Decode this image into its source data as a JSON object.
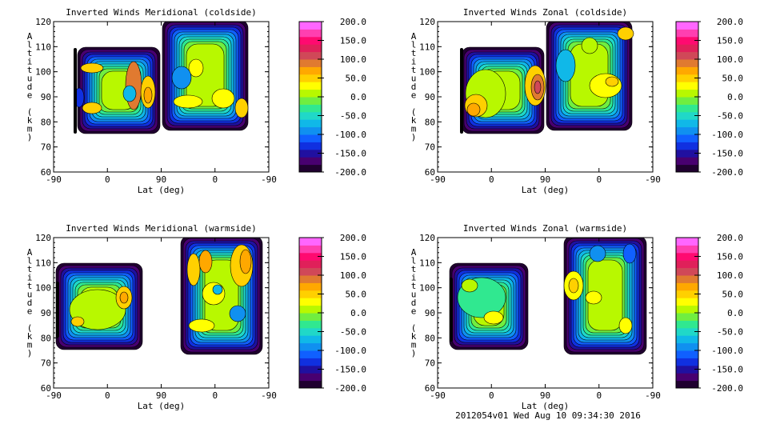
{
  "footer": "2012054v01 Wed Aug 10 09:34:30 2016",
  "colorbar": {
    "levels": [
      -200,
      -175,
      -150,
      -125,
      -100,
      -75,
      -50,
      -25,
      0,
      25,
      50,
      75,
      100,
      125,
      150,
      175,
      200
    ],
    "labels": [
      "200.0",
      "150.0",
      "100.0",
      "50.0",
      "0.0",
      "-50.0",
      "-100.0",
      "-150.0",
      "-200.0"
    ],
    "colors": [
      "#200030",
      "#480070",
      "#2010a0",
      "#1030e0",
      "#1060ff",
      "#1090f0",
      "#10b8e8",
      "#20d8c8",
      "#30e890",
      "#70ee40",
      "#b8f800",
      "#ffff00",
      "#ffd000",
      "#ffa800",
      "#e07a30",
      "#d04858",
      "#e0205a",
      "#ff0a70",
      "#ff3fb0",
      "#ff66ff"
    ]
  },
  "chart_data": [
    {
      "type": "heatmap",
      "title": "Inverted Winds Meridional (coldside)",
      "xlabel": "Lat (deg)",
      "ylabel": "Altitude (km)",
      "xticks": [
        "-90",
        "0",
        "90",
        "0",
        "-90"
      ],
      "yticks": [
        "60",
        "70",
        "80",
        "90",
        "100",
        "110",
        "120"
      ],
      "ylim": [
        60,
        120
      ],
      "zlim": [
        -200,
        200
      ]
    },
    {
      "type": "heatmap",
      "title": "Inverted Winds Zonal (coldside)",
      "xlabel": "Lat (deg)",
      "ylabel": "Altitude (km)",
      "xticks": [
        "-90",
        "0",
        "90",
        "0",
        "-90"
      ],
      "yticks": [
        "60",
        "70",
        "80",
        "90",
        "100",
        "110",
        "120"
      ],
      "ylim": [
        60,
        120
      ],
      "zlim": [
        -200,
        200
      ]
    },
    {
      "type": "heatmap",
      "title": "Inverted Winds Meridional (warmside)",
      "xlabel": "Lat (deg)",
      "ylabel": "Altitude (km)",
      "xticks": [
        "-90",
        "0",
        "90",
        "0",
        "-90"
      ],
      "yticks": [
        "60",
        "70",
        "80",
        "90",
        "100",
        "110",
        "120"
      ],
      "ylim": [
        60,
        120
      ],
      "zlim": [
        -200,
        200
      ]
    },
    {
      "type": "heatmap",
      "title": "Inverted Winds Zonal (warmside)",
      "xlabel": "Lat (deg)",
      "ylabel": "Altitude (km)",
      "xticks": [
        "-90",
        "0",
        "90",
        "0",
        "-90"
      ],
      "yticks": [
        "60",
        "70",
        "80",
        "90",
        "100",
        "110",
        "120"
      ],
      "ylim": [
        60,
        120
      ],
      "zlim": [
        -200,
        200
      ]
    }
  ]
}
